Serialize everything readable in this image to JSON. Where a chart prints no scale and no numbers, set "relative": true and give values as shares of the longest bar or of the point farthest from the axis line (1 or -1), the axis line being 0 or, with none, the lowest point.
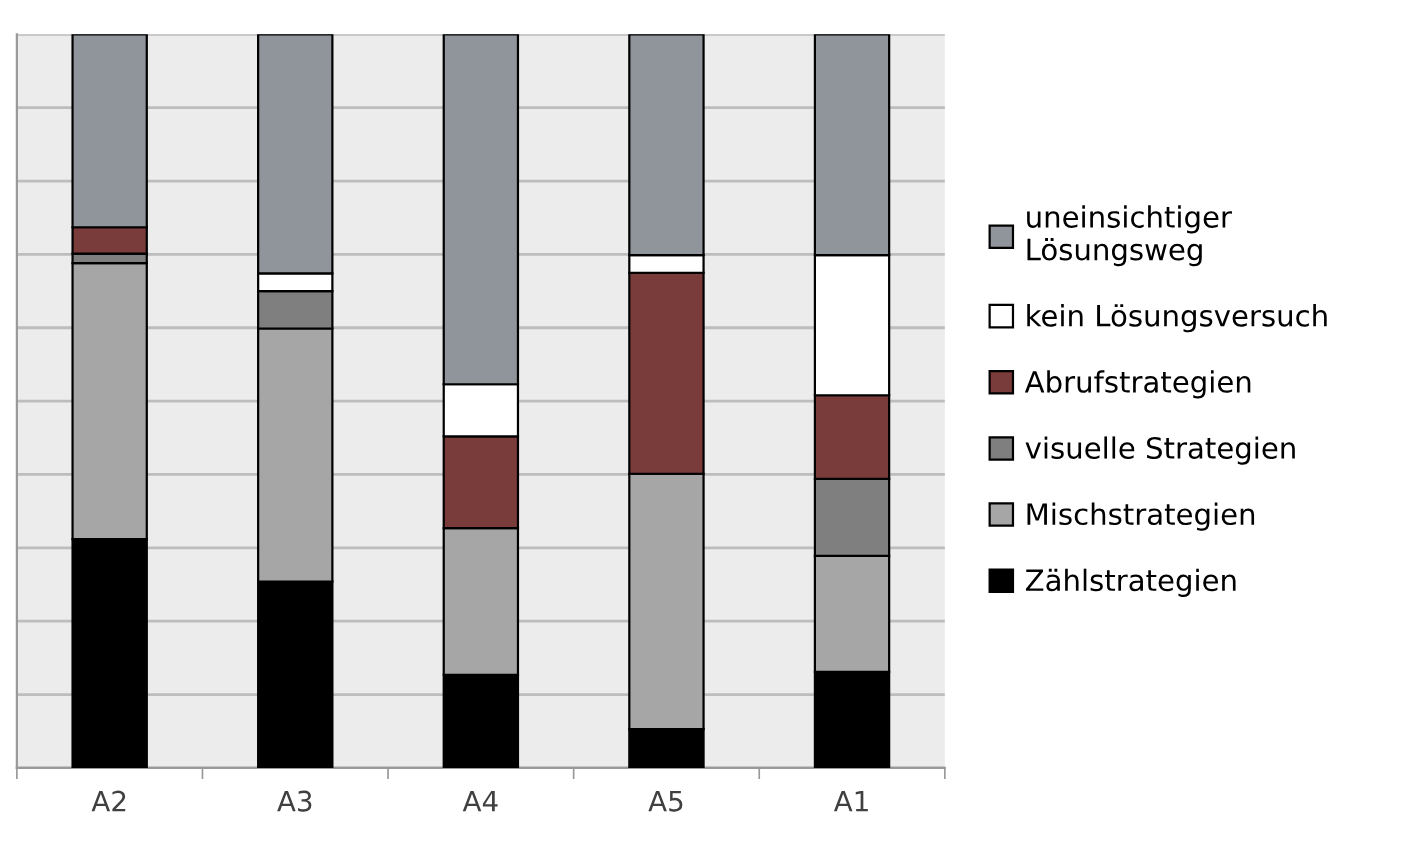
{
  "chart_data": {
    "type": "bar",
    "stacked": true,
    "relative": true,
    "grid": "y",
    "legend": "right",
    "categories": [
      "A2",
      "A3",
      "A4",
      "A5",
      "A1"
    ],
    "series": [
      {
        "name": "Zählstrategien",
        "color": "#000000",
        "values": [
          0.312,
          0.254,
          0.127,
          0.053,
          0.131
        ]
      },
      {
        "name": "Mischstrategien",
        "color": "#a6a6a6",
        "values": [
          0.376,
          0.345,
          0.2,
          0.348,
          0.158
        ]
      },
      {
        "name": "visuelle Strategien",
        "color": "#7f7f7f",
        "values": [
          0.013,
          0.051,
          0,
          0,
          0.105
        ]
      },
      {
        "name": "Abrufstrategien",
        "color": "#7a3b3b",
        "values": [
          0.036,
          0,
          0.125,
          0.274,
          0.114
        ]
      },
      {
        "name": "kein Lösungsversuch",
        "color": "#ffffff",
        "values": [
          0,
          0.024,
          0.071,
          0.024,
          0.191
        ]
      },
      {
        "name": "uneinsichtiger Lösungsweg",
        "color": "#8f959a",
        "values": [
          0.263,
          0.326,
          0.477,
          0.301,
          0.301
        ]
      }
    ]
  }
}
